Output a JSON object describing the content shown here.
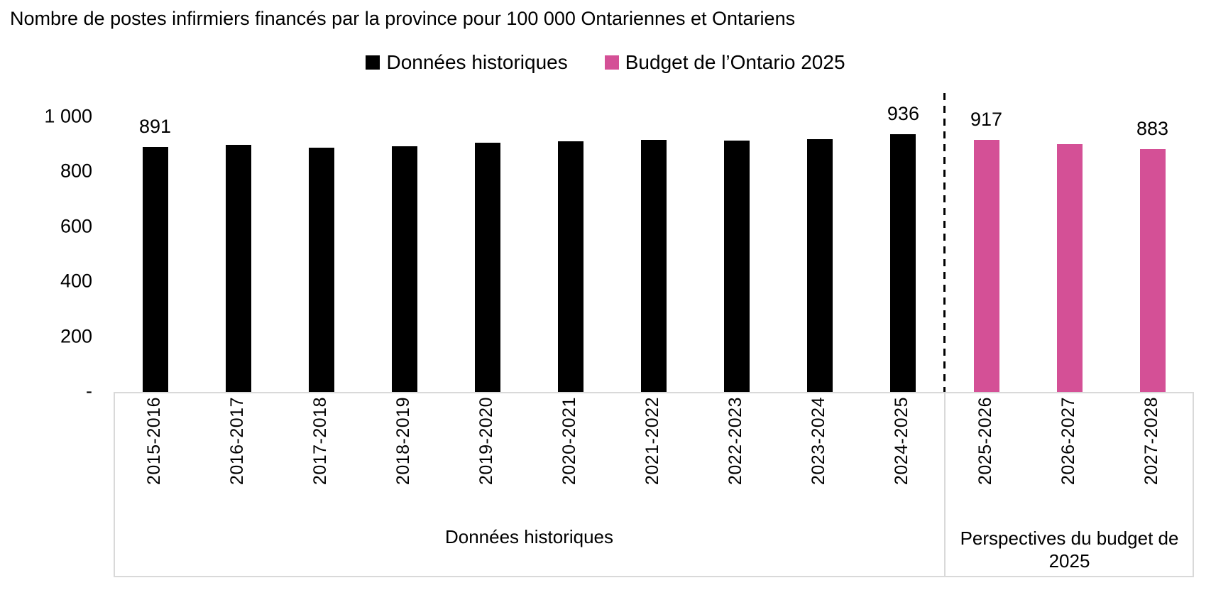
{
  "title": "Nombre de postes infirmiers financés par la province pour 100 000 Ontariennes et Ontariens",
  "legend": [
    {
      "label": "Données historiques",
      "color": "#000000"
    },
    {
      "label": "Budget de l’Ontario 2025",
      "color": "#d45096"
    }
  ],
  "chart_data": {
    "type": "bar",
    "title": "Nombre de postes infirmiers financés par la province pour 100 000 Ontariennes et Ontariens",
    "xlabel": "",
    "ylabel": "",
    "ylim": [
      0,
      1000
    ],
    "grid": false,
    "legend_position": "top-center",
    "yticks": [
      {
        "value": 1000,
        "label": "1 000"
      },
      {
        "value": 800,
        "label": "800"
      },
      {
        "value": 600,
        "label": "600"
      },
      {
        "value": 400,
        "label": "400"
      },
      {
        "value": 200,
        "label": "200"
      },
      {
        "value": 0,
        "label": "-"
      }
    ],
    "categories": [
      "2015-2016",
      "2016-2017",
      "2017-2018",
      "2018-2019",
      "2019-2020",
      "2020-2021",
      "2021-2022",
      "2022-2023",
      "2023-2024",
      "2024-2025",
      "2025-2026",
      "2026-2027",
      "2027-2028"
    ],
    "series": [
      {
        "name": "Données historiques",
        "color": "#000000",
        "categories": [
          "2015-2016",
          "2016-2017",
          "2017-2018",
          "2018-2019",
          "2019-2020",
          "2020-2021",
          "2021-2022",
          "2022-2023",
          "2023-2024",
          "2024-2025"
        ],
        "values": [
          891,
          897,
          889,
          894,
          906,
          911,
          915,
          913,
          919,
          936
        ]
      },
      {
        "name": "Budget de l’Ontario 2025",
        "color": "#d45096",
        "categories": [
          "2025-2026",
          "2026-2027",
          "2027-2028"
        ],
        "values": [
          917,
          901,
          883
        ]
      }
    ],
    "data_labels": [
      {
        "category": "2015-2016",
        "label": "891"
      },
      {
        "category": "2024-2025",
        "label": "936"
      },
      {
        "category": "2025-2026",
        "label": "917"
      },
      {
        "category": "2027-2028",
        "label": "883"
      }
    ],
    "groups": [
      {
        "label": "Données historiques"
      },
      {
        "label": "Perspectives du budget de 2025"
      }
    ],
    "separator": {
      "type": "dashed-line",
      "between": [
        "2024-2025",
        "2025-2026"
      ]
    }
  }
}
